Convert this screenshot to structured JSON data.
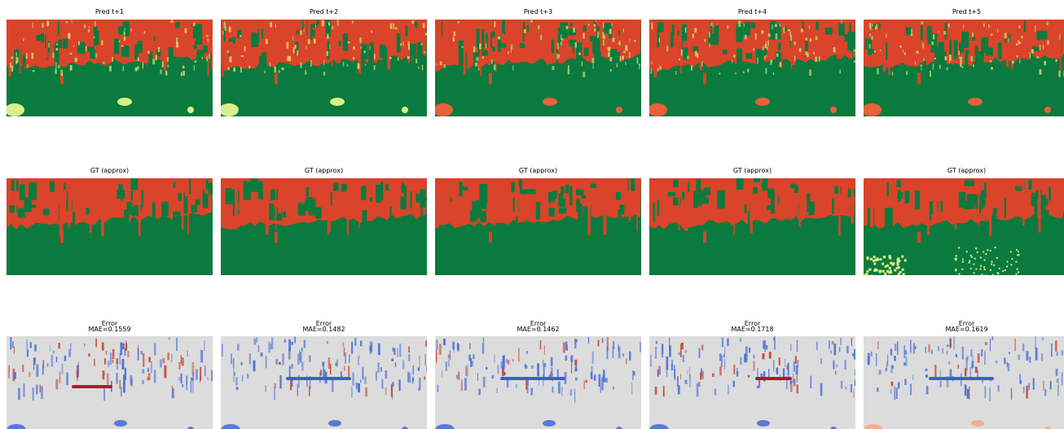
{
  "rows": [
    {
      "panels": [
        {
          "title": "Pred t+1"
        },
        {
          "title": "Pred t+2"
        },
        {
          "title": "Pred t+3"
        },
        {
          "title": "Pred t+4"
        },
        {
          "title": "Pred t+5"
        }
      ]
    },
    {
      "panels": [
        {
          "title": "GT (approx)"
        },
        {
          "title": "GT (approx)"
        },
        {
          "title": "GT (approx)"
        },
        {
          "title": "GT (approx)"
        },
        {
          "title": "GT (approx)"
        }
      ]
    },
    {
      "panels": [
        {
          "title": "Error",
          "subtitle": "MAE=0.1559"
        },
        {
          "title": "Error",
          "subtitle": "MAE=0.1482"
        },
        {
          "title": "Error",
          "subtitle": "MAE=0.1462"
        },
        {
          "title": "Error",
          "subtitle": "MAE=0.1718"
        },
        {
          "title": "Error",
          "subtitle": "MAE=0.1619"
        }
      ]
    }
  ]
}
